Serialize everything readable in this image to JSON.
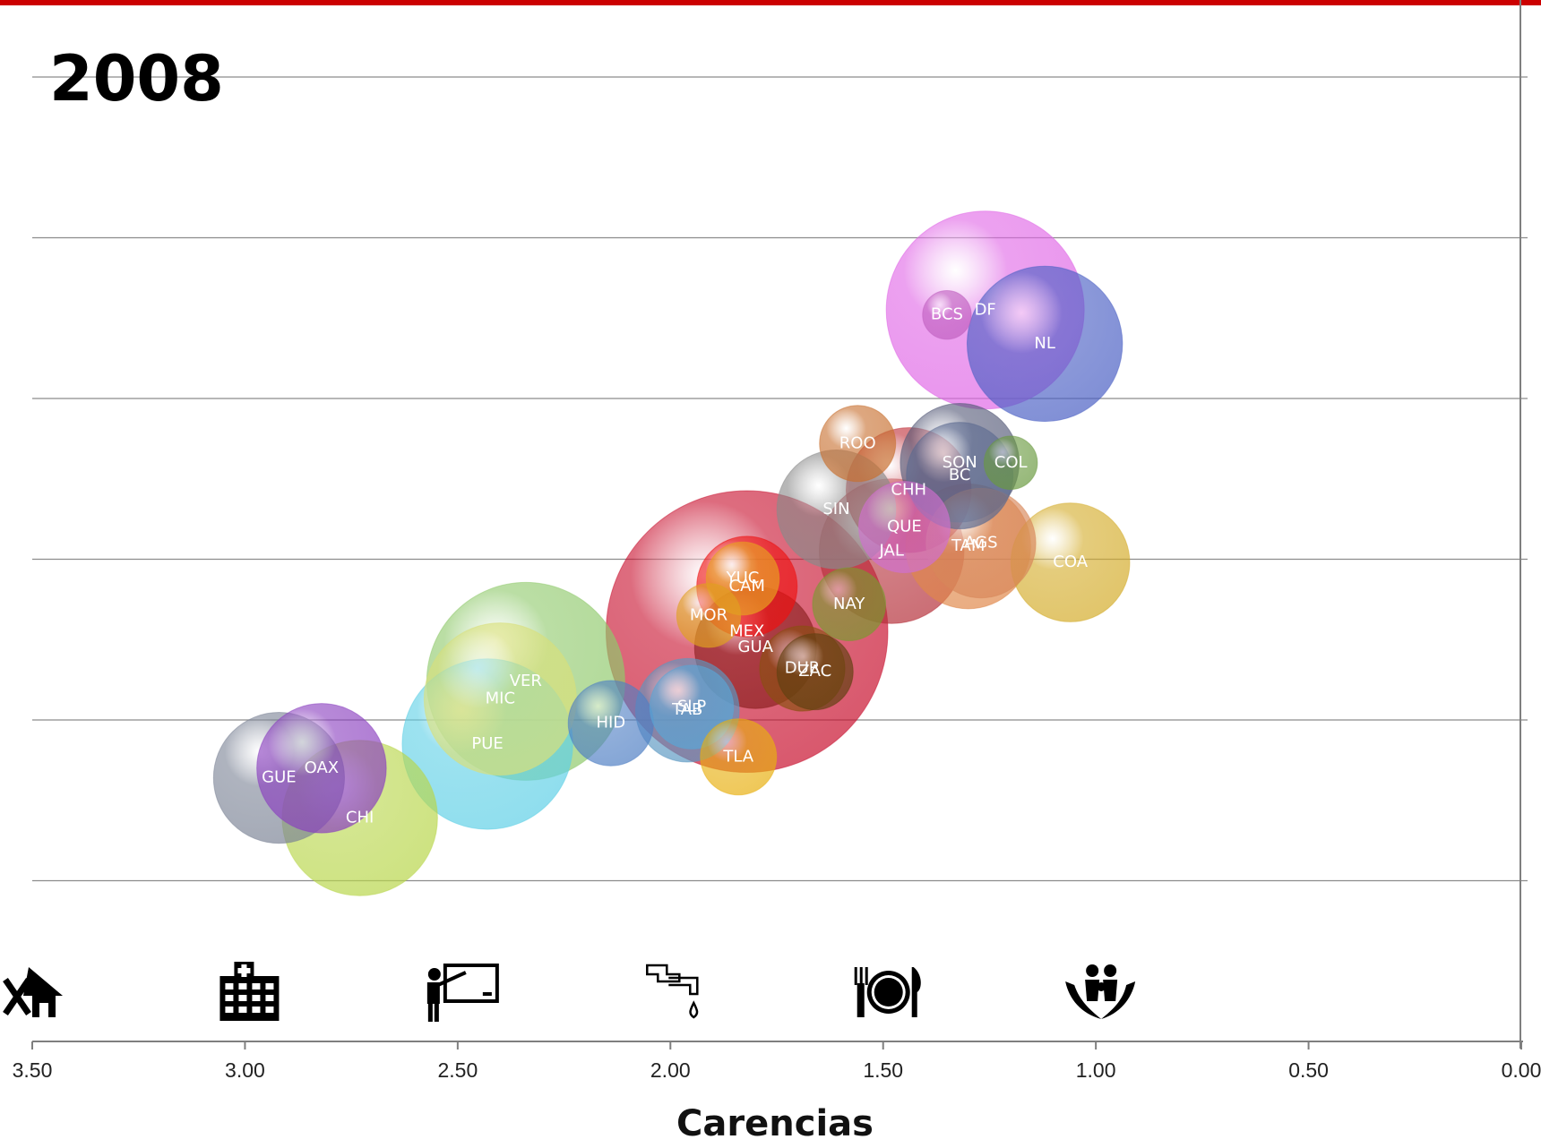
{
  "colors": {
    "accent_bar": "#cc0000",
    "gridline": "#8c8c8c",
    "axis": "#7f7f7f"
  },
  "chart_data": {
    "type": "bubble",
    "title": "2008",
    "xlabel": "Carencias",
    "ylabel": "",
    "x_axis_reversed": true,
    "xlim": [
      3.5,
      0.0
    ],
    "x_ticks": [
      "3.50",
      "3.00",
      "2.50",
      "2.00",
      "1.50",
      "1.00",
      "0.50",
      "0.00"
    ],
    "y_tick_labels_shown": false,
    "y_units": "gridline units (0 = bottom axis, 6 = top gridline)",
    "grid": true,
    "legend": "none",
    "axis_icons": [
      {
        "name": "house-repair-icon",
        "x": 3.5
      },
      {
        "name": "hospital-icon",
        "x": 3.0
      },
      {
        "name": "teacher-icon",
        "x": 2.5
      },
      {
        "name": "water-pipe-icon",
        "x": 2.0
      },
      {
        "name": "food-plate-icon",
        "x": 1.5
      },
      {
        "name": "family-care-icon",
        "x": 1.0
      }
    ],
    "series": [
      {
        "name": "MEX",
        "x": 1.82,
        "y": 2.55,
        "size": 185,
        "color": "#c8102e"
      },
      {
        "name": "DF",
        "x": 1.26,
        "y": 4.55,
        "size": 130,
        "color": "#e066e6"
      },
      {
        "name": "VER",
        "x": 2.34,
        "y": 2.24,
        "size": 130,
        "color": "#8fc96b"
      },
      {
        "name": "JAL",
        "x": 1.48,
        "y": 3.05,
        "size": 95,
        "color": "#b5303a"
      },
      {
        "name": "PUE",
        "x": 2.43,
        "y": 1.85,
        "size": 112,
        "color": "#5fd0e6"
      },
      {
        "name": "GUA",
        "x": 1.8,
        "y": 2.45,
        "size": 80,
        "color": "#8c2020"
      },
      {
        "name": "CHI",
        "x": 2.73,
        "y": 1.39,
        "size": 102,
        "color": "#b8d64a"
      },
      {
        "name": "MIC",
        "x": 2.4,
        "y": 2.13,
        "size": 100,
        "color": "#d9e07a"
      },
      {
        "name": "NL",
        "x": 1.12,
        "y": 4.34,
        "size": 102,
        "color": "#4a5fc4"
      },
      {
        "name": "OAX",
        "x": 2.82,
        "y": 1.7,
        "size": 85,
        "color": "#8a3fbf"
      },
      {
        "name": "GUE",
        "x": 2.92,
        "y": 1.64,
        "size": 86,
        "color": "#7c8496"
      },
      {
        "name": "HID",
        "x": 2.14,
        "y": 1.98,
        "size": 56,
        "color": "#4f7fc4"
      },
      {
        "name": "SLP",
        "x": 1.95,
        "y": 2.08,
        "size": 55,
        "color": "#5aa6d6"
      },
      {
        "name": "TAB",
        "x": 1.96,
        "y": 2.06,
        "size": 68,
        "color": "#5b98c2"
      },
      {
        "name": "TAM",
        "x": 1.3,
        "y": 3.08,
        "size": 82,
        "color": "#e0884a"
      },
      {
        "name": "SON",
        "x": 1.32,
        "y": 3.6,
        "size": 78,
        "color": "#555a78"
      },
      {
        "name": "BC",
        "x": 1.32,
        "y": 3.52,
        "size": 70,
        "color": "#5c6a90"
      },
      {
        "name": "SIN",
        "x": 1.61,
        "y": 3.31,
        "size": 78,
        "color": "#8a8a8a"
      },
      {
        "name": "COA",
        "x": 1.06,
        "y": 2.98,
        "size": 78,
        "color": "#d4ac2a"
      },
      {
        "name": "CHH",
        "x": 1.44,
        "y": 3.43,
        "size": 82,
        "color": "#c0303a"
      },
      {
        "name": "AGS",
        "x": 1.27,
        "y": 3.1,
        "size": 72,
        "color": "#d8875a"
      },
      {
        "name": "QUE",
        "x": 1.45,
        "y": 3.2,
        "size": 60,
        "color": "#d070d0"
      },
      {
        "name": "MOR",
        "x": 1.91,
        "y": 2.65,
        "size": 42,
        "color": "#e0a020"
      },
      {
        "name": "YUC",
        "x": 1.83,
        "y": 2.88,
        "size": 48,
        "color": "#e8a020"
      },
      {
        "name": "CAM",
        "x": 1.82,
        "y": 2.83,
        "size": 66,
        "color": "#ee1111"
      },
      {
        "name": "NAY",
        "x": 1.58,
        "y": 2.72,
        "size": 48,
        "color": "#7a9a30"
      },
      {
        "name": "DUR",
        "x": 1.69,
        "y": 2.32,
        "size": 56,
        "color": "#8a5010"
      },
      {
        "name": "ZAC",
        "x": 1.66,
        "y": 2.3,
        "size": 50,
        "color": "#604010"
      },
      {
        "name": "TLA",
        "x": 1.84,
        "y": 1.77,
        "size": 50,
        "color": "#e8b010"
      },
      {
        "name": "ROO",
        "x": 1.56,
        "y": 3.72,
        "size": 50,
        "color": "#c87030"
      },
      {
        "name": "COL",
        "x": 1.2,
        "y": 3.6,
        "size": 35,
        "color": "#6a9a40"
      },
      {
        "name": "BCS",
        "x": 1.35,
        "y": 4.52,
        "size": 32,
        "color": "#c060c0"
      }
    ],
    "label_offsets_note": "labels positioned at bubble centers"
  }
}
